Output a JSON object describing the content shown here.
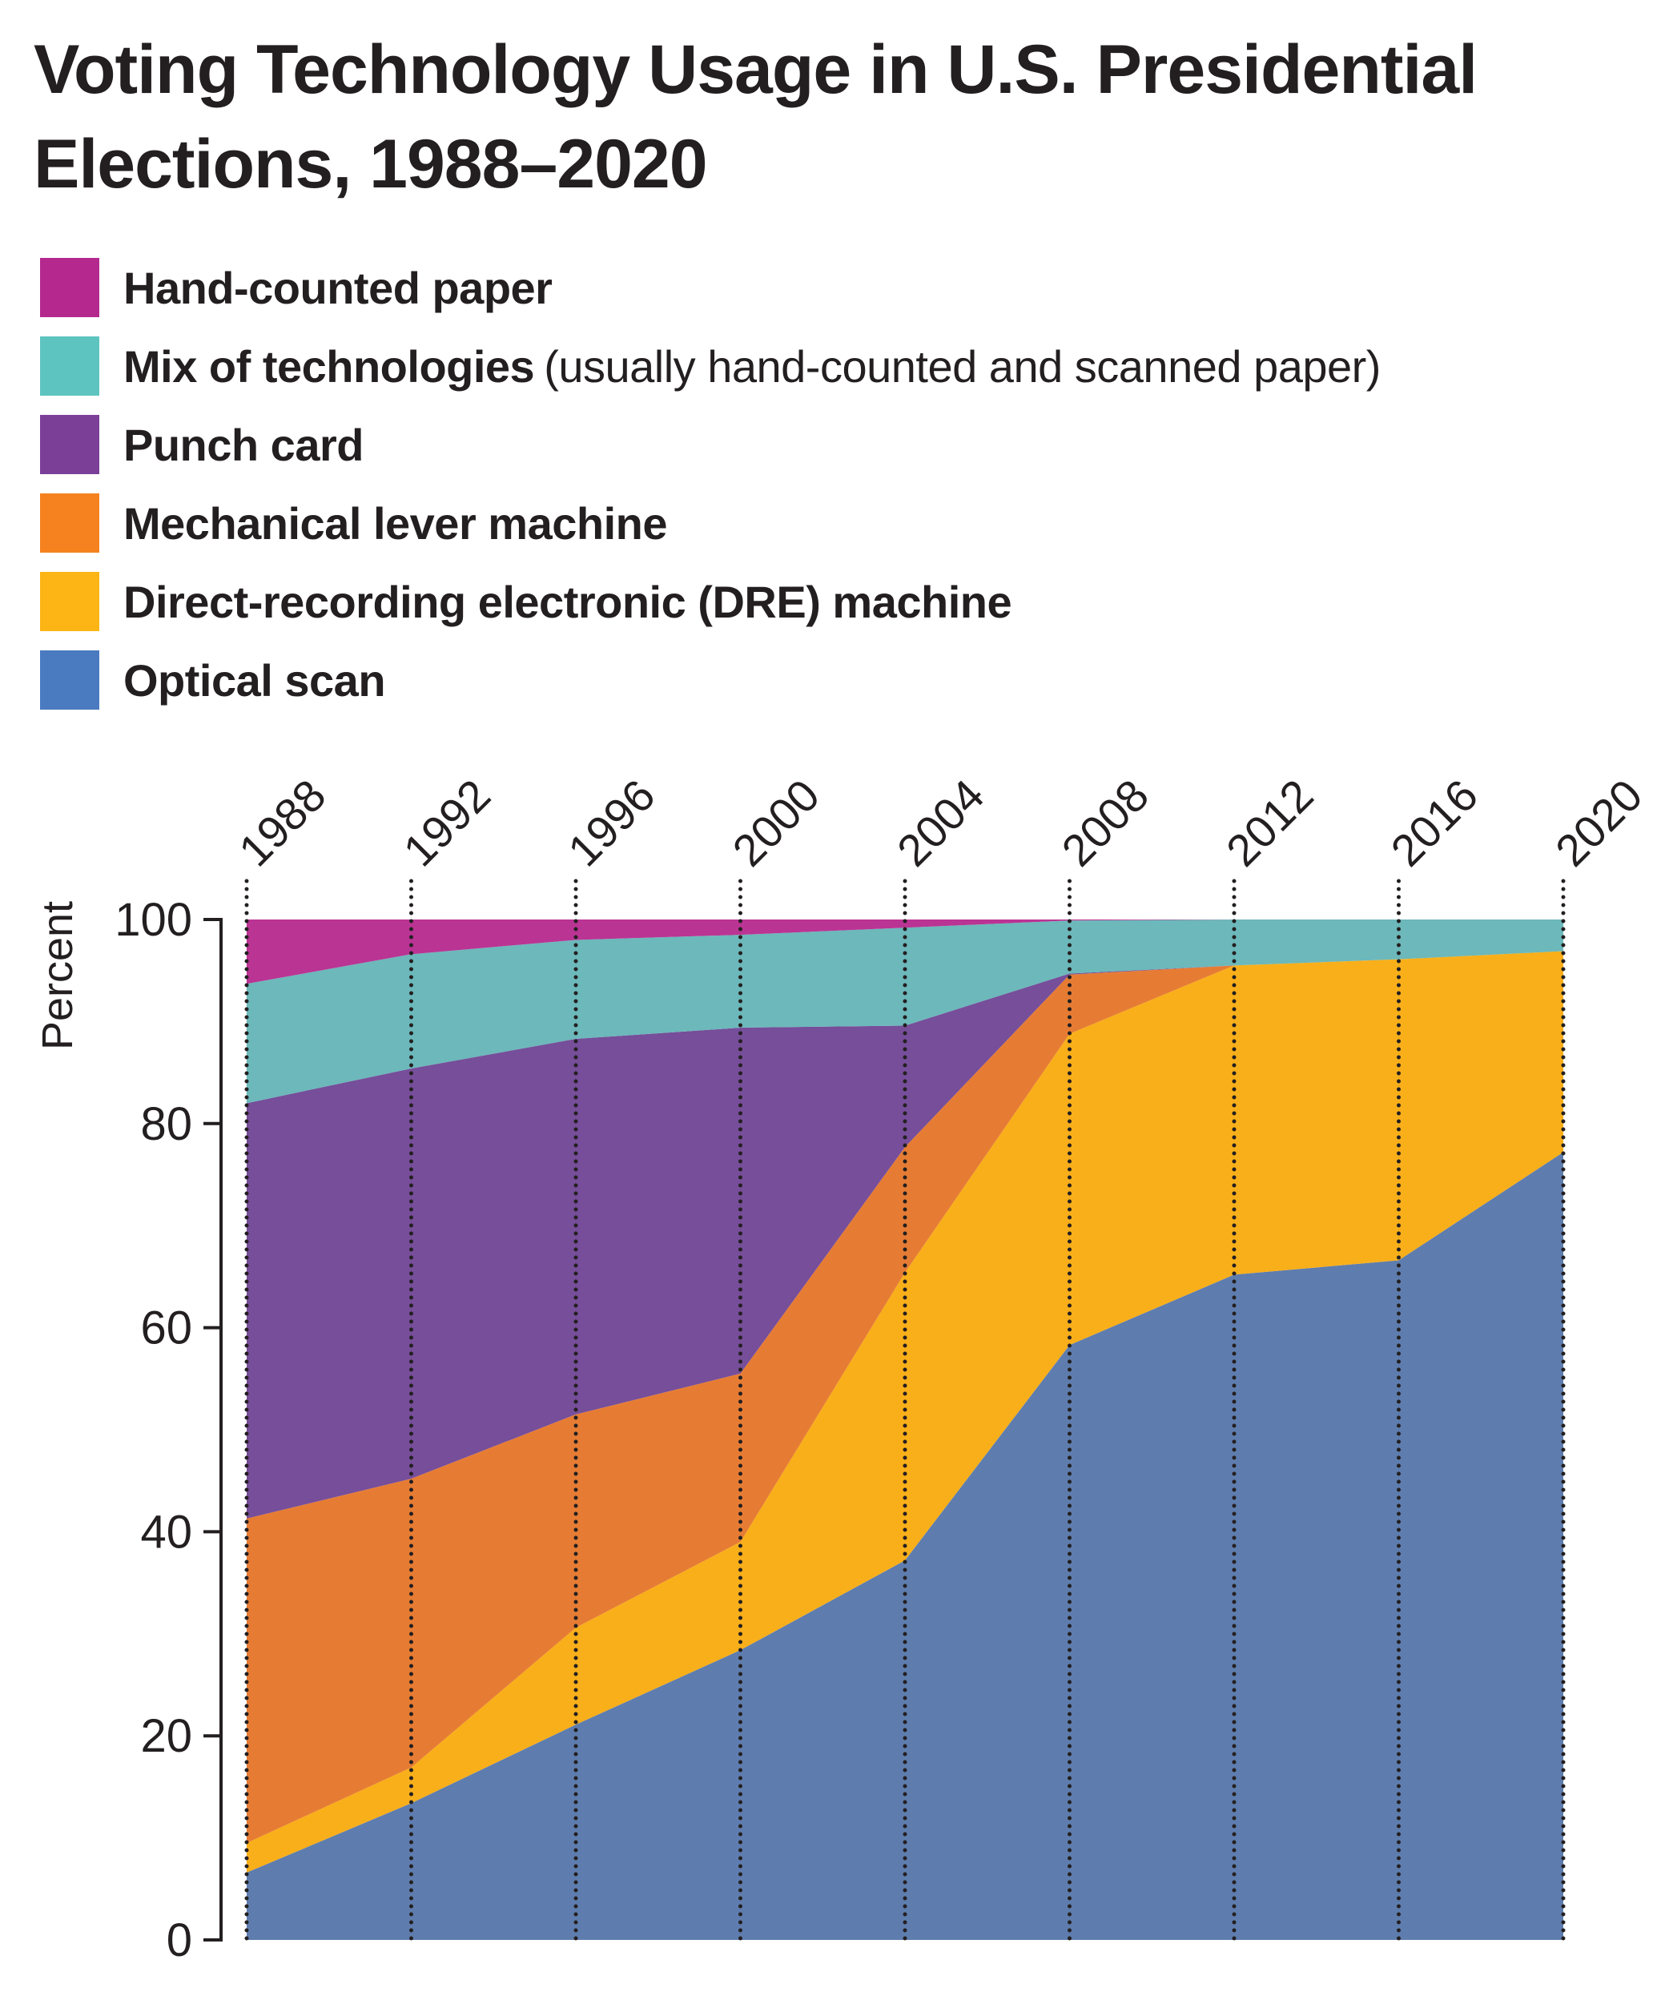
{
  "chart_data": {
    "type": "area",
    "stacked": true,
    "title": "Voting Technology Usage in U.S. Presidential Elections, 1988–2020",
    "ylabel": "Percent",
    "xlabel": "",
    "ylim": [
      0,
      100
    ],
    "yticks": [
      "0",
      "20",
      "40",
      "60",
      "80",
      "100"
    ],
    "grid": false,
    "legend_position": "top-left",
    "x": [
      "1988",
      "1992",
      "1996",
      "2000",
      "2004",
      "2008",
      "2012",
      "2016",
      "2020"
    ],
    "series": [
      {
        "name": "Optical scan",
        "color": "#5E7DAE",
        "legend_color": "#4A7BC0",
        "values": [
          6.6,
          13.4,
          21.1,
          28.4,
          37.2,
          58.3,
          65.2,
          66.6,
          77.2
        ]
      },
      {
        "name": "Direct-recording electronic (DRE) machine",
        "color": "#F9AF1A",
        "legend_color": "#FDB515",
        "values": [
          2.9,
          3.5,
          9.5,
          10.6,
          28.2,
          30.5,
          30.3,
          29.5,
          19.7
        ]
      },
      {
        "name": "Mechanical lever machine",
        "color": "#E67C34",
        "legend_color": "#F5821F",
        "values": [
          31.8,
          28.3,
          20.9,
          16.5,
          12.3,
          5.8,
          0.0,
          0.0,
          0.0
        ]
      },
      {
        "name": "Punch card",
        "color": "#764E9A",
        "legend_color": "#7B3F98",
        "values": [
          40.7,
          40.2,
          36.8,
          33.9,
          11.9,
          0.1,
          0.0,
          0.0,
          0.0
        ]
      },
      {
        "name": "Mix of technologies",
        "note": "(usually hand-counted and scanned paper)",
        "color": "#6CB8BA",
        "legend_color": "#5EC4BF",
        "values": [
          11.7,
          11.2,
          9.7,
          9.1,
          9.6,
          5.2,
          4.5,
          3.9,
          3.1
        ]
      },
      {
        "name": "Hand-counted paper",
        "color": "#BA3494",
        "legend_color": "#B5298F",
        "values": [
          6.3,
          3.4,
          2.0,
          1.5,
          0.8,
          0.1,
          0.0,
          0.0,
          0.0
        ]
      }
    ]
  },
  "legend": {
    "items": [
      {
        "label": "Hand-counted paper",
        "note": ""
      },
      {
        "label": "Mix of technologies",
        "note": "(usually hand-counted and scanned paper)"
      },
      {
        "label": "Punch card",
        "note": ""
      },
      {
        "label": "Mechanical lever machine",
        "note": ""
      },
      {
        "label": "Direct-recording electronic (DRE) machine",
        "note": ""
      },
      {
        "label": "Optical scan",
        "note": ""
      }
    ]
  }
}
